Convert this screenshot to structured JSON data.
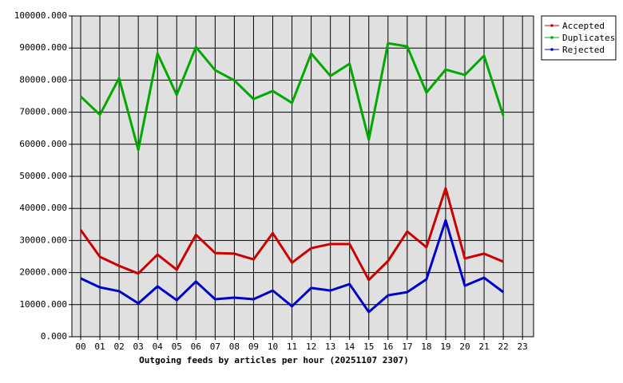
{
  "chart_data": {
    "type": "line",
    "title": "Outgoing feeds by articles per hour (20251107 2307)",
    "categories": [
      "00",
      "01",
      "02",
      "03",
      "04",
      "05",
      "06",
      "07",
      "08",
      "09",
      "10",
      "11",
      "12",
      "13",
      "14",
      "15",
      "16",
      "17",
      "18",
      "19",
      "20",
      "21",
      "22",
      "23"
    ],
    "series": [
      {
        "name": "Accepted",
        "color": "#cc0000",
        "values": [
          33300,
          24900,
          22100,
          19700,
          25600,
          20900,
          31800,
          26100,
          25900,
          24100,
          32300,
          23100,
          27600,
          28900,
          28900,
          17700,
          23600,
          32800,
          27900,
          46300,
          24400,
          25900,
          23400,
          null
        ]
      },
      {
        "name": "Duplicates",
        "color": "#00aa00",
        "values": [
          74900,
          69200,
          80600,
          58200,
          88300,
          75400,
          90300,
          83100,
          79900,
          74100,
          76600,
          72900,
          88300,
          81300,
          85100,
          61400,
          91500,
          90500,
          76100,
          83300,
          81600,
          87600,
          68900,
          null
        ]
      },
      {
        "name": "Rejected",
        "color": "#0000cc",
        "values": [
          18200,
          15400,
          14200,
          10400,
          15700,
          11400,
          17200,
          11700,
          12200,
          11700,
          14400,
          9500,
          15200,
          14400,
          16400,
          7700,
          12900,
          13900,
          17900,
          36300,
          15900,
          18400,
          13900,
          null
        ]
      }
    ],
    "ylim": [
      0,
      100000
    ],
    "yticks": [
      {
        "value": 0,
        "label": "0.000"
      },
      {
        "value": 10000,
        "label": "10000.000"
      },
      {
        "value": 20000,
        "label": "20000.000"
      },
      {
        "value": 30000,
        "label": "30000.000"
      },
      {
        "value": 40000,
        "label": "40000.000"
      },
      {
        "value": 50000,
        "label": "50000.000"
      },
      {
        "value": 60000,
        "label": "60000.000"
      },
      {
        "value": 70000,
        "label": "70000.000"
      },
      {
        "value": 80000,
        "label": "80000.000"
      },
      {
        "value": 90000,
        "label": "90000.000"
      },
      {
        "value": 100000,
        "label": "100000.000"
      }
    ],
    "grid": true,
    "legend": "top-right"
  }
}
